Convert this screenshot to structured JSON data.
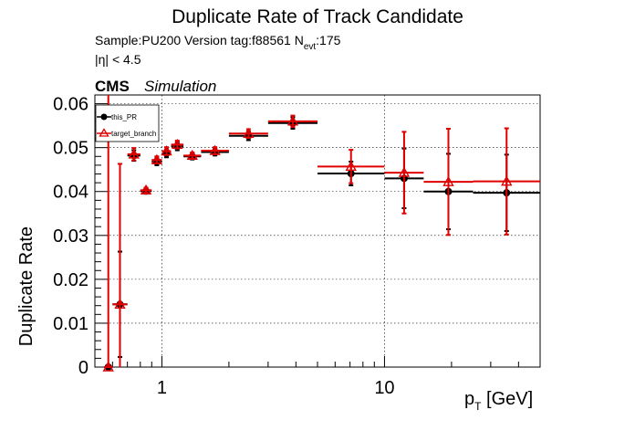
{
  "chart_data": {
    "type": "scatter",
    "title": "Duplicate Rate of Track Candidate",
    "sample_label": "Sample:PU200   Version tag:f88561  N",
    "nevt_sub": "evt",
    "nevt_value": ":175",
    "eta_label": "|η| < 4.5",
    "cms_label": "CMS",
    "simulation_label": "Simulation",
    "ylabel": "Duplicate Rate",
    "xlabel_main": "p",
    "xlabel_sub": "T",
    "xlabel_unit": " [GeV]",
    "x_scale": "log",
    "xlim": [
      0.5,
      50
    ],
    "ylim": [
      0,
      0.062
    ],
    "grid": true,
    "legend_position": "top-left",
    "x_ticks": [
      {
        "value": 1,
        "label": "1"
      },
      {
        "value": 10,
        "label": "10"
      }
    ],
    "y_ticks": [
      {
        "value": 0,
        "label": "0"
      },
      {
        "value": 0.01,
        "label": "0.01"
      },
      {
        "value": 0.02,
        "label": "0.02"
      },
      {
        "value": 0.03,
        "label": "0.03"
      },
      {
        "value": 0.04,
        "label": "0.04"
      },
      {
        "value": 0.05,
        "label": "0.05"
      },
      {
        "value": 0.06,
        "label": "0.06"
      }
    ],
    "series": [
      {
        "name": "this_PR",
        "color": "#000000",
        "marker": "filled-circle",
        "points": [
          {
            "xlo": 0.55,
            "xhi": 0.6,
            "y": 0.0,
            "err": 0.0
          },
          {
            "xlo": 0.6,
            "xhi": 0.7,
            "y": 0.0143,
            "err": 0.012
          },
          {
            "xlo": 0.7,
            "xhi": 0.8,
            "y": 0.0482,
            "err": 0.0012
          },
          {
            "xlo": 0.8,
            "xhi": 0.9,
            "y": 0.0401,
            "err": 0.0006
          },
          {
            "xlo": 0.9,
            "xhi": 1.0,
            "y": 0.0468,
            "err": 0.0008
          },
          {
            "xlo": 1.0,
            "xhi": 1.1,
            "y": 0.0487,
            "err": 0.0009
          },
          {
            "xlo": 1.1,
            "xhi": 1.25,
            "y": 0.0503,
            "err": 0.0009
          },
          {
            "xlo": 1.25,
            "xhi": 1.5,
            "y": 0.048,
            "err": 0.0007
          },
          {
            "xlo": 1.5,
            "xhi": 2.0,
            "y": 0.049,
            "err": 0.0008
          },
          {
            "xlo": 2.0,
            "xhi": 3.0,
            "y": 0.0527,
            "err": 0.001
          },
          {
            "xlo": 3.0,
            "xhi": 5.0,
            "y": 0.0556,
            "err": 0.0013
          },
          {
            "xlo": 5.0,
            "xhi": 10.0,
            "y": 0.0441,
            "err": 0.0027
          },
          {
            "xlo": 10.0,
            "xhi": 15.0,
            "y": 0.043,
            "err": 0.0068
          },
          {
            "xlo": 15.0,
            "xhi": 25.0,
            "y": 0.04,
            "err": 0.0086
          },
          {
            "xlo": 25.0,
            "xhi": 50.0,
            "y": 0.0397,
            "err": 0.0087
          }
        ]
      },
      {
        "name": "target_branch",
        "color": "#e00000",
        "marker": "open-triangle",
        "points": [
          {
            "xlo": 0.55,
            "xhi": 0.6,
            "y": 0.0,
            "err": 0.068
          },
          {
            "xlo": 0.6,
            "xhi": 0.7,
            "y": 0.0143,
            "err": 0.032
          },
          {
            "xlo": 0.7,
            "xhi": 0.8,
            "y": 0.0485,
            "err": 0.0014
          },
          {
            "xlo": 0.8,
            "xhi": 0.9,
            "y": 0.0403,
            "err": 0.0006
          },
          {
            "xlo": 0.9,
            "xhi": 1.0,
            "y": 0.0472,
            "err": 0.0008
          },
          {
            "xlo": 1.0,
            "xhi": 1.1,
            "y": 0.0492,
            "err": 0.0009
          },
          {
            "xlo": 1.1,
            "xhi": 1.25,
            "y": 0.0507,
            "err": 0.0009
          },
          {
            "xlo": 1.25,
            "xhi": 1.5,
            "y": 0.0482,
            "err": 0.0007
          },
          {
            "xlo": 1.5,
            "xhi": 2.0,
            "y": 0.0493,
            "err": 0.0008
          },
          {
            "xlo": 2.0,
            "xhi": 3.0,
            "y": 0.0532,
            "err": 0.001
          },
          {
            "xlo": 3.0,
            "xhi": 5.0,
            "y": 0.056,
            "err": 0.0013
          },
          {
            "xlo": 5.0,
            "xhi": 10.0,
            "y": 0.0457,
            "err": 0.0038
          },
          {
            "xlo": 10.0,
            "xhi": 15.0,
            "y": 0.0443,
            "err": 0.0093
          },
          {
            "xlo": 15.0,
            "xhi": 25.0,
            "y": 0.0422,
            "err": 0.0121
          },
          {
            "xlo": 25.0,
            "xhi": 50.0,
            "y": 0.0423,
            "err": 0.0121
          }
        ]
      }
    ]
  }
}
